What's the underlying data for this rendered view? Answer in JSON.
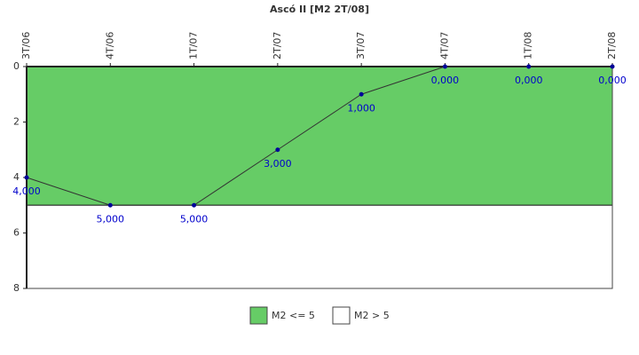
{
  "chart_data": {
    "type": "line",
    "title": "Ascó II [M2 2T/08]",
    "categories": [
      "3T/06",
      "4T/06",
      "1T/07",
      "2T/07",
      "3T/07",
      "4T/07",
      "1T/08",
      "2T/08"
    ],
    "values": [
      4,
      5,
      5,
      3,
      1,
      0,
      0,
      0
    ],
    "value_labels": [
      "4,000",
      "5,000",
      "5,000",
      "3,000",
      "1,000",
      "0,000",
      "0,000",
      "0,000"
    ],
    "line_color": "#333333",
    "point_color": "#000099",
    "label_color": "#0000cc",
    "ylim": [
      0,
      8
    ],
    "yticks": [
      0,
      2,
      4,
      6,
      8
    ],
    "y_inverted": true,
    "bands": [
      {
        "name": "M2 <= 5",
        "from": 0,
        "to": 5,
        "color": "#66cc66"
      },
      {
        "name": "M2 > 5",
        "from": 5,
        "to": 8,
        "color": "#ffffff"
      }
    ]
  }
}
